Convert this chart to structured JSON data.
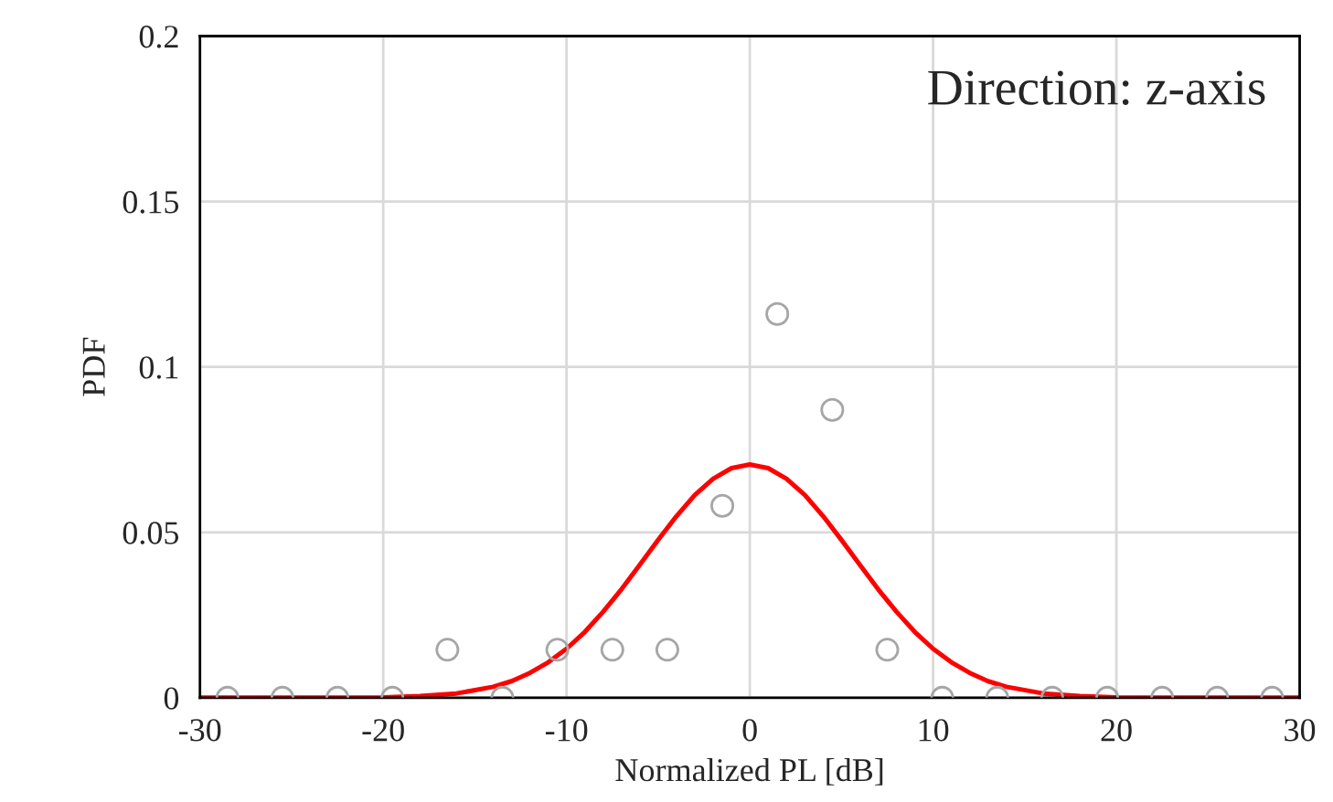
{
  "chart_data": {
    "type": "scatter",
    "xlabel": "Normalized PL [dB]",
    "ylabel": "PDF",
    "annotations": [
      "Direction: z-axis"
    ],
    "xlim": [
      -30,
      30
    ],
    "xticks": [
      -30,
      -20,
      -10,
      0,
      10,
      20,
      30
    ],
    "ylim": [
      0,
      0.2
    ],
    "yticks": [
      0,
      0.05,
      0.1,
      0.15,
      0.2
    ],
    "grid": true,
    "marker": "circle",
    "series": [
      {
        "color": "#a6a6a6",
        "x": [
          -28.5,
          -25.5,
          -22.5,
          -19.5,
          -16.5,
          -13.5,
          -10.5,
          -7.5,
          -4.5,
          -1.5,
          1.5,
          4.5,
          7.5,
          10.5,
          13.5,
          16.5,
          19.5,
          22.5,
          25.5,
          28.5
        ],
        "values": [
          0,
          0,
          0,
          0,
          0.0145,
          0,
          0.0145,
          0.0145,
          0.0145,
          0.058,
          0.116,
          0.087,
          0.0145,
          0,
          0,
          0,
          0,
          0,
          0,
          0
        ]
      },
      {
        "type": "line",
        "color": "#ff0000",
        "marker": "none",
        "line_style": "solid",
        "x": [
          -30,
          -25,
          -20,
          -18,
          -16,
          -14,
          -13,
          -12,
          -11,
          -10,
          -9,
          -8,
          -7,
          -6,
          -5,
          -4,
          -3,
          -2,
          -1,
          0,
          1,
          2,
          3,
          4,
          5,
          6,
          7,
          8,
          9,
          10,
          11,
          12,
          13,
          14,
          16,
          18,
          20,
          25,
          30
        ],
        "values": [
          0,
          0,
          0.0001,
          0.0005,
          0.0013,
          0.0033,
          0.005,
          0.0075,
          0.0107,
          0.0148,
          0.0199,
          0.026,
          0.0328,
          0.0402,
          0.0477,
          0.0549,
          0.0613,
          0.0662,
          0.0694,
          0.0705,
          0.0694,
          0.0662,
          0.0613,
          0.0549,
          0.0477,
          0.0402,
          0.0328,
          0.026,
          0.0199,
          0.0148,
          0.0107,
          0.0075,
          0.005,
          0.0033,
          0.0013,
          0.0005,
          0.0001,
          0,
          0
        ]
      }
    ]
  }
}
